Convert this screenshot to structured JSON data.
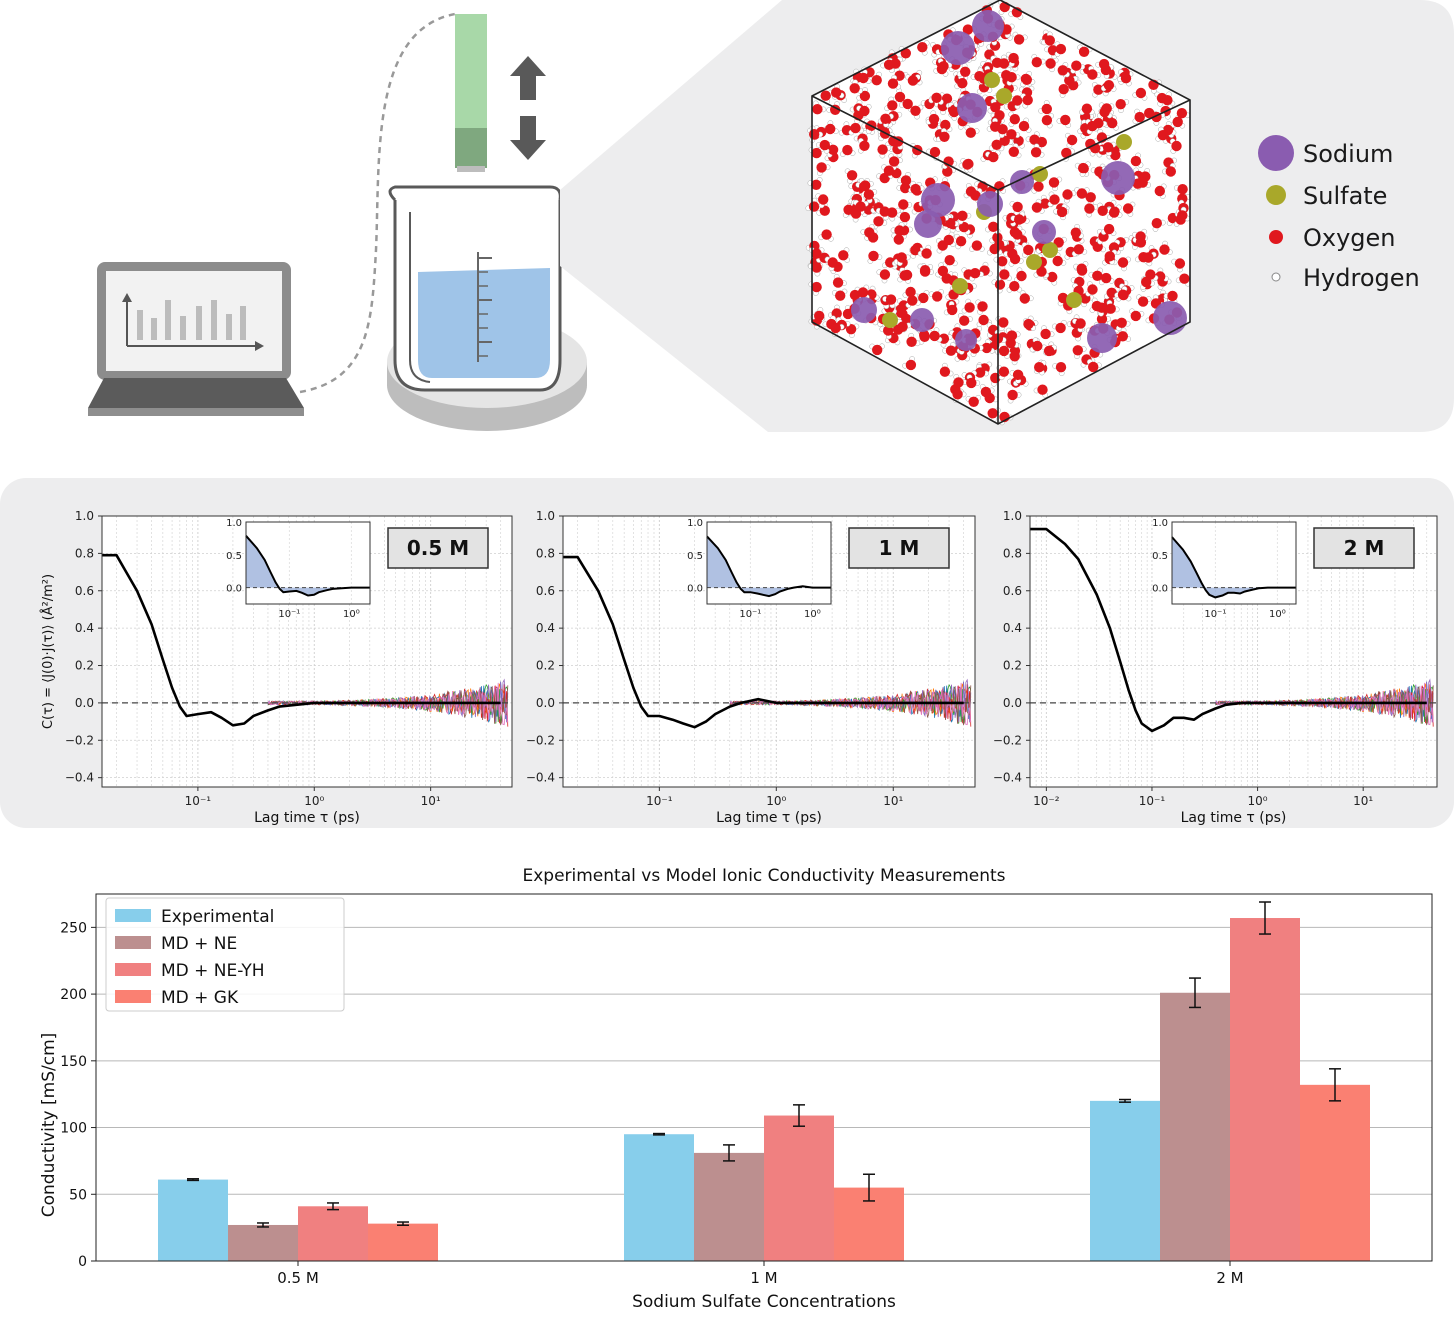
{
  "legend_particles": [
    {
      "label": "Sodium",
      "color": "#8a5cb0",
      "size": "large"
    },
    {
      "label": "Sulfate",
      "color": "#a9a82a",
      "size": "medium"
    },
    {
      "label": "Oxygen",
      "color": "#e0181e",
      "size": "small"
    },
    {
      "label": "Hydrogen",
      "color": "#ffffff",
      "size": "tiny"
    }
  ],
  "chart_data": [
    {
      "type": "line",
      "panel": "0.5 M",
      "badge": "0.5 M",
      "ylabel": "C(τ) = ⟨J(0)·J(τ)⟩ (Å²/m²)",
      "xlabel": "Lag time τ (ps)",
      "xscale": "log",
      "xlim": [
        0.015,
        50
      ],
      "ylim": [
        -0.45,
        1.0
      ],
      "yticks": [
        "1.0",
        "0.8",
        "0.6",
        "0.4",
        "0.2",
        "0.0",
        "−0.2",
        "−0.4"
      ],
      "xticks": [
        "10⁻¹",
        "10⁰",
        "10¹"
      ],
      "inset_yticks": [
        "1.0",
        "0.5",
        "0.0"
      ],
      "inset_xticks": [
        "10⁻¹",
        "10⁰"
      ],
      "series": [
        {
          "color": "#000000",
          "x": [
            0.015,
            0.02,
            0.03,
            0.04,
            0.05,
            0.06,
            0.07,
            0.08,
            0.1,
            0.13,
            0.16,
            0.2,
            0.25,
            0.3,
            0.4,
            0.5,
            0.7,
            1,
            2,
            5,
            10,
            20,
            40
          ],
          "y": [
            0.79,
            0.79,
            0.6,
            0.42,
            0.23,
            0.08,
            -0.02,
            -0.07,
            -0.06,
            -0.05,
            -0.08,
            -0.12,
            -0.11,
            -0.07,
            -0.04,
            -0.02,
            -0.01,
            0.0,
            0.0,
            0.0,
            0.0,
            0.0,
            0.0
          ]
        }
      ]
    },
    {
      "type": "line",
      "panel": "1 M",
      "badge": "1 M",
      "ylabel": "",
      "xlabel": "Lag time τ (ps)",
      "xscale": "log",
      "xlim": [
        0.015,
        50
      ],
      "ylim": [
        -0.45,
        1.0
      ],
      "yticks": [
        "1.0",
        "0.8",
        "0.6",
        "0.4",
        "0.2",
        "0.0",
        "−0.2",
        "−0.4"
      ],
      "xticks": [
        "10⁻¹",
        "10⁰",
        "10¹"
      ],
      "inset_yticks": [
        "1.0",
        "0.5",
        "0.0"
      ],
      "inset_xticks": [
        "10⁻¹",
        "10⁰"
      ],
      "series": [
        {
          "color": "#000000",
          "x": [
            0.015,
            0.02,
            0.03,
            0.04,
            0.05,
            0.06,
            0.07,
            0.08,
            0.1,
            0.13,
            0.16,
            0.2,
            0.25,
            0.3,
            0.4,
            0.5,
            0.7,
            1,
            2,
            5,
            10,
            20,
            40
          ],
          "y": [
            0.78,
            0.78,
            0.6,
            0.42,
            0.23,
            0.08,
            -0.02,
            -0.07,
            -0.07,
            -0.09,
            -0.11,
            -0.13,
            -0.1,
            -0.06,
            -0.02,
            0.0,
            0.02,
            0.0,
            0.0,
            0.0,
            0.0,
            0.0,
            0.0
          ]
        }
      ]
    },
    {
      "type": "line",
      "panel": "2 M",
      "badge": "2 M",
      "ylabel": "",
      "xlabel": "Lag time τ (ps)",
      "xscale": "log",
      "xlim": [
        0.007,
        50
      ],
      "ylim": [
        -0.45,
        1.0
      ],
      "yticks": [
        "1.0",
        "0.8",
        "0.6",
        "0.4",
        "0.2",
        "0.0",
        "−0.2",
        "−0.4"
      ],
      "xticks": [
        "10⁻²",
        "10⁻¹",
        "10⁰",
        "10¹"
      ],
      "inset_yticks": [
        "1.0",
        "0.5",
        "0.0"
      ],
      "inset_xticks": [
        "10⁻¹",
        "10⁰"
      ],
      "series": [
        {
          "color": "#000000",
          "x": [
            0.007,
            0.01,
            0.015,
            0.02,
            0.03,
            0.04,
            0.05,
            0.06,
            0.07,
            0.08,
            0.1,
            0.13,
            0.16,
            0.2,
            0.25,
            0.3,
            0.4,
            0.5,
            0.7,
            1,
            2,
            5,
            10,
            20,
            40
          ],
          "y": [
            0.93,
            0.93,
            0.85,
            0.77,
            0.58,
            0.4,
            0.22,
            0.07,
            -0.04,
            -0.11,
            -0.15,
            -0.12,
            -0.08,
            -0.08,
            -0.09,
            -0.06,
            -0.03,
            -0.01,
            0.0,
            0.0,
            0.0,
            0.0,
            0.0,
            0.0,
            0.0
          ]
        }
      ]
    },
    {
      "type": "bar",
      "title": "Experimental vs Model Ionic Conductivity Measurements",
      "xlabel": "Sodium Sulfate Concentrations",
      "ylabel": "Conductivity [mS/cm]",
      "ylim": [
        0,
        275
      ],
      "yticks": [
        0,
        50,
        100,
        150,
        200,
        250
      ],
      "grid": "y",
      "legend_position": "top-left",
      "categories": [
        "0.5 M",
        "1 M",
        "2 M"
      ],
      "series": [
        {
          "name": "Experimental",
          "color": "#87ceeb",
          "values": [
            61,
            95,
            120
          ],
          "errors": [
            0.6,
            0.5,
            1.0
          ]
        },
        {
          "name": "MD + NE",
          "color": "#bc8f8f",
          "values": [
            27,
            81,
            201
          ],
          "errors": [
            1.5,
            6,
            11
          ]
        },
        {
          "name": "MD + NE-YH",
          "color": "#f08080",
          "values": [
            41,
            109,
            257
          ],
          "errors": [
            2.5,
            8,
            12
          ]
        },
        {
          "name": "MD + GK",
          "color": "#fa8072",
          "values": [
            28,
            55,
            132
          ],
          "errors": [
            1.2,
            10,
            12
          ]
        }
      ]
    }
  ]
}
